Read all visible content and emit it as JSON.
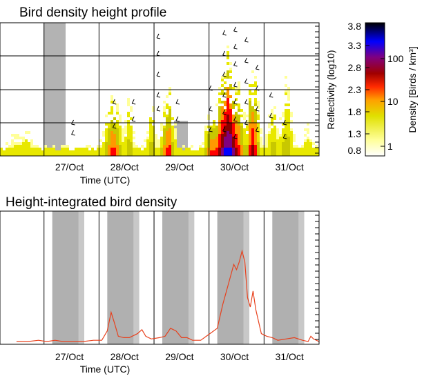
{
  "chart_data": [
    {
      "type": "heatmap",
      "title": "Bird density height profile",
      "xlabel": "Time (UTC)",
      "x_ticks": [
        "27/Oct",
        "28/Oct",
        "29/Oct",
        "30/Oct",
        "31/Oct"
      ],
      "reflectivity_axis": {
        "label": "Reflectivity (log10)",
        "ticks": [
          "3.8",
          "3.3",
          "2.8",
          "2.3",
          "1.8",
          "1.3",
          "0.8"
        ]
      },
      "density_axis": {
        "label": "Density [Birds / km³]",
        "ticks": [
          "100",
          "10",
          "1"
        ],
        "scale": "log"
      },
      "colormap": [
        "#ffffff",
        "#ffff99",
        "#e8e800",
        "#c8c800",
        "#ff9900",
        "#ff0000",
        "#8b0000",
        "#800080",
        "#0000ff",
        "#000000"
      ],
      "density_peaks": [
        {
          "x": "27/Oct",
          "level": 1
        },
        {
          "x": "28/Oct",
          "level": 10
        },
        {
          "x": "29/Oct",
          "level": 10
        },
        {
          "x": "30/Oct",
          "level": 100
        },
        {
          "x": "31/Oct",
          "level": 10
        }
      ],
      "shaded_periods": "night"
    },
    {
      "type": "line",
      "title": "Height-integrated bird density",
      "xlabel": "Time (UTC)",
      "x_ticks": [
        "27/Oct",
        "28/Oct",
        "29/Oct",
        "30/Oct",
        "31/Oct"
      ],
      "series": [
        {
          "color": "#e8401c",
          "x": [
            26.0,
            26.2,
            26.4,
            26.55,
            26.7,
            26.85,
            27.0,
            27.2,
            27.4,
            27.55,
            27.65,
            27.72,
            27.78,
            27.85,
            27.95,
            28.05,
            28.2,
            28.28,
            28.35,
            28.45,
            28.6,
            28.7,
            28.8,
            28.9,
            29.0,
            29.1,
            29.2,
            29.35,
            29.45,
            29.55,
            29.65,
            29.75,
            29.85,
            29.95,
            30.0,
            30.05,
            30.1,
            30.15,
            30.2,
            30.25,
            30.3,
            30.35,
            30.45,
            30.55,
            30.65,
            30.75,
            30.9,
            31.05,
            31.2,
            31.3,
            31.35,
            31.4,
            31.5
          ],
          "y": [
            0.02,
            0.02,
            0.03,
            0.02,
            0.03,
            0.02,
            0.02,
            0.02,
            0.03,
            0.03,
            0.1,
            0.24,
            0.16,
            0.06,
            0.05,
            0.05,
            0.08,
            0.11,
            0.06,
            0.04,
            0.05,
            0.06,
            0.12,
            0.1,
            0.05,
            0.05,
            0.03,
            0.03,
            0.06,
            0.09,
            0.12,
            0.3,
            0.45,
            0.6,
            0.56,
            0.62,
            0.7,
            0.62,
            0.35,
            0.28,
            0.4,
            0.26,
            0.08,
            0.06,
            0.05,
            0.03,
            0.04,
            0.05,
            0.03,
            0.02,
            0.06,
            0.04,
            0.02
          ]
        }
      ],
      "xlim": [
        25.7,
        31.5
      ],
      "ylim": [
        0,
        1
      ],
      "shaded_periods": "night"
    }
  ]
}
